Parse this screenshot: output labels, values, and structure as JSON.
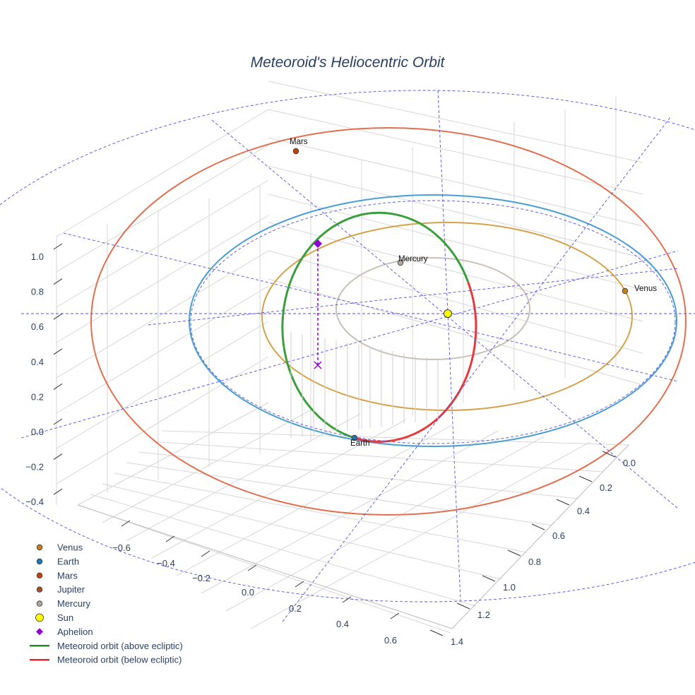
{
  "chart_data": {
    "type": "scatter3d",
    "title": "Meteoroid's Heliocentric Orbit",
    "axes": {
      "x": {
        "ticks": [
          "−0.6",
          "−0.4",
          "−0.2",
          "0.0",
          "0.2",
          "0.4",
          "0.6"
        ]
      },
      "y": {
        "ticks": [
          "0.0",
          "0.2",
          "0.4",
          "0.6",
          "0.8",
          "1.0",
          "1.2",
          "1.4"
        ]
      },
      "z": {
        "ticks": [
          "1.0",
          "0.8",
          "0.6",
          "0.4",
          "0.2",
          "0.0",
          "−0.2",
          "−0.4"
        ]
      }
    },
    "grid": true,
    "legend_placement": "bottom-left",
    "point_labels": [
      "Mars",
      "Mercury",
      "Venus",
      "Earth"
    ],
    "series": [
      {
        "name": "Venus",
        "kind": "marker",
        "color": "#c8801e"
      },
      {
        "name": "Earth",
        "kind": "marker",
        "color": "#1f77b4"
      },
      {
        "name": "Mars",
        "kind": "marker",
        "color": "#c1440e"
      },
      {
        "name": "Jupiter",
        "kind": "marker",
        "color": "#a0522d"
      },
      {
        "name": "Mercury",
        "kind": "marker",
        "color": "#b0a8a0"
      },
      {
        "name": "Sun",
        "kind": "marker",
        "color": "#ffff00"
      },
      {
        "name": "Aphelion",
        "kind": "diamond",
        "color": "#9400d3"
      },
      {
        "name": "Meteoroid orbit (above ecliptic)",
        "kind": "line",
        "color": "#228b22"
      },
      {
        "name": "Meteoroid orbit (below ecliptic)",
        "kind": "line",
        "color": "#e8262b"
      }
    ]
  }
}
